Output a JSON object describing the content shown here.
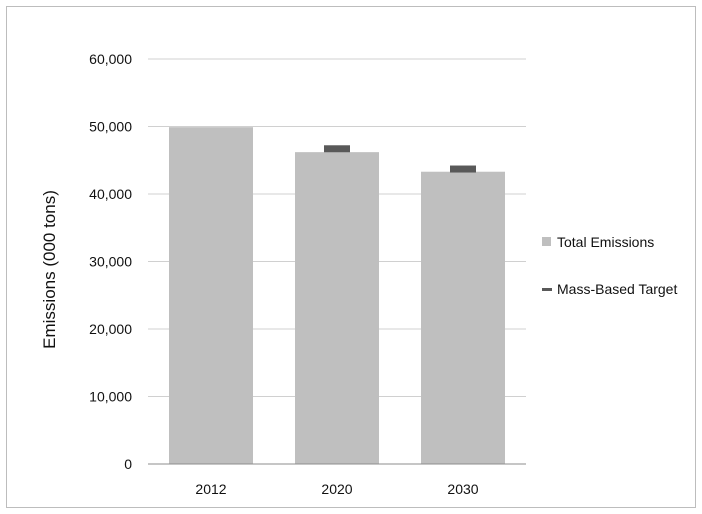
{
  "chart_data": {
    "type": "bar",
    "categories": [
      "2012",
      "2020",
      "2030"
    ],
    "series": [
      {
        "name": "Total Emissions",
        "kind": "bar",
        "color": "#bfbfbf",
        "values": [
          49900,
          46200,
          43300
        ]
      },
      {
        "name": "Mass-Based Target",
        "kind": "marker",
        "color": "#595959",
        "values": [
          null,
          46700,
          43700
        ]
      }
    ],
    "title": "",
    "xlabel": "",
    "ylabel": "Emissions (000 tons)",
    "ylim": [
      0,
      60000
    ],
    "yticks": [
      "0",
      "10,000",
      "20,000",
      "30,000",
      "40,000",
      "50,000",
      "60,000"
    ],
    "grid": true,
    "legend_position": "right"
  }
}
